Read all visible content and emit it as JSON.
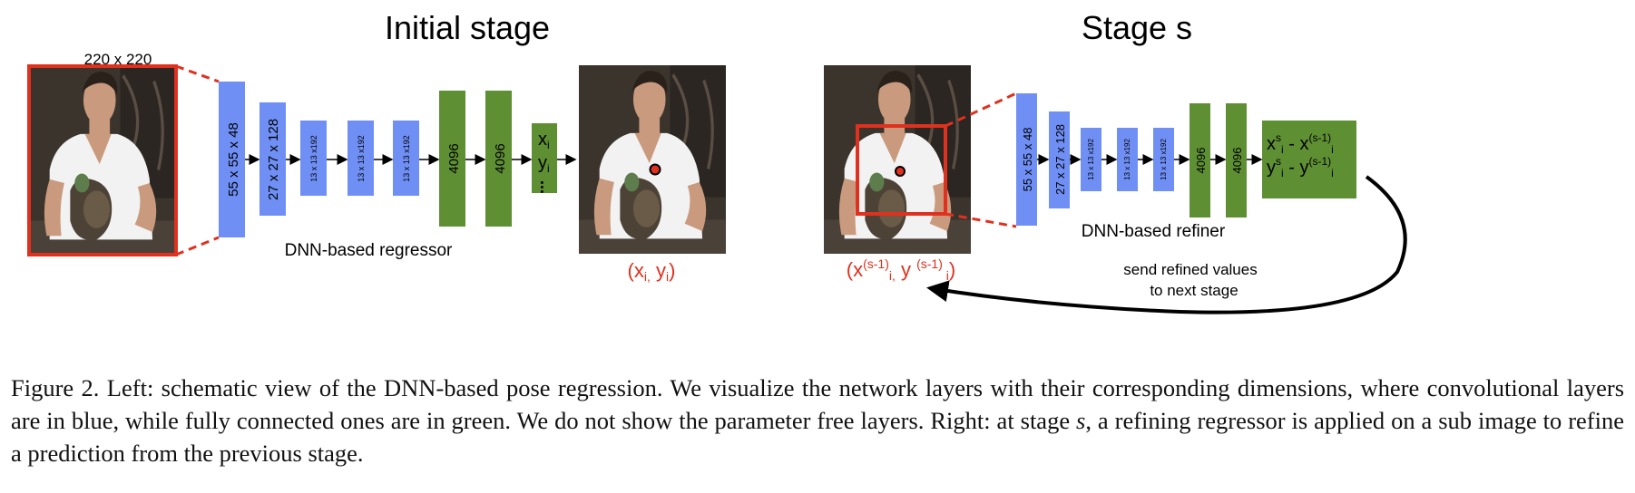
{
  "figure": {
    "left_panel": {
      "title": "Initial stage",
      "input_size": "220 x 220",
      "conv_layers": [
        "55 x 55 x 48",
        "27 x 27 x 128",
        "13 x 13 x192",
        "13 x 13 x192",
        "13 x 13 x192"
      ],
      "fc_layers": [
        "4096",
        "4096"
      ],
      "output_lines": [
        "x",
        "y",
        "..."
      ],
      "output_subscript": "i",
      "network_label": "DNN-based regressor",
      "prediction_label": "(x",
      "prediction_label_sub1": "i,",
      "prediction_label_mid": " y",
      "prediction_label_sub2": "i",
      "prediction_label_end": ")"
    },
    "right_panel": {
      "title": "Stage s",
      "conv_layers": [
        "55 x 55 x 48",
        "27 x 27 x 128",
        "13 x 13 x192",
        "13 x 13 x192",
        "13 x 13 x192"
      ],
      "fc_layers": [
        "4096",
        "4096"
      ],
      "output_line1": "x",
      "output_line1_sup": "s",
      "output_line1_sub": "i",
      "output_line1_rest": " - x",
      "output_line1_sup2": "(s-1)",
      "output_line1_sub2": "i",
      "output_line2": "y",
      "output_line2_sup": "s",
      "output_line2_sub": "i",
      "output_line2_rest": " - y",
      "output_line2_sup2": "(s-1)",
      "output_line2_sub2": "i",
      "network_label": "DNN-based refiner",
      "prev_label_a": "(x",
      "prev_label_sup1": "(s-1)",
      "prev_label_sub1": "i,",
      "prev_label_b": " y ",
      "prev_label_sup2": "(s-1)",
      "prev_label_sub2": " i",
      "prev_label_end": ")",
      "feedback_line1": "send refined values",
      "feedback_line2": "to next stage"
    },
    "colors": {
      "conv": "#6f8ff5",
      "fc": "#5e8f33",
      "highlight": "#e0301e",
      "photo_bg": "#3a3530",
      "shirt": "#f2f2f2",
      "skin": "#c99a7d",
      "hair": "#2a211b"
    }
  },
  "caption": {
    "label": "Figure 2.",
    "text_a": "  Left: schematic view of the DNN-based pose regression. We visualize the network layers with their corresponding dimensions, where convolutional layers are in blue, while fully connected ones are in green. We do not show the parameter free layers. Right: at stage ",
    "stage_symbol": "s",
    "text_b": ", a refining regressor is applied on a sub image to refine a prediction from the previous stage."
  }
}
